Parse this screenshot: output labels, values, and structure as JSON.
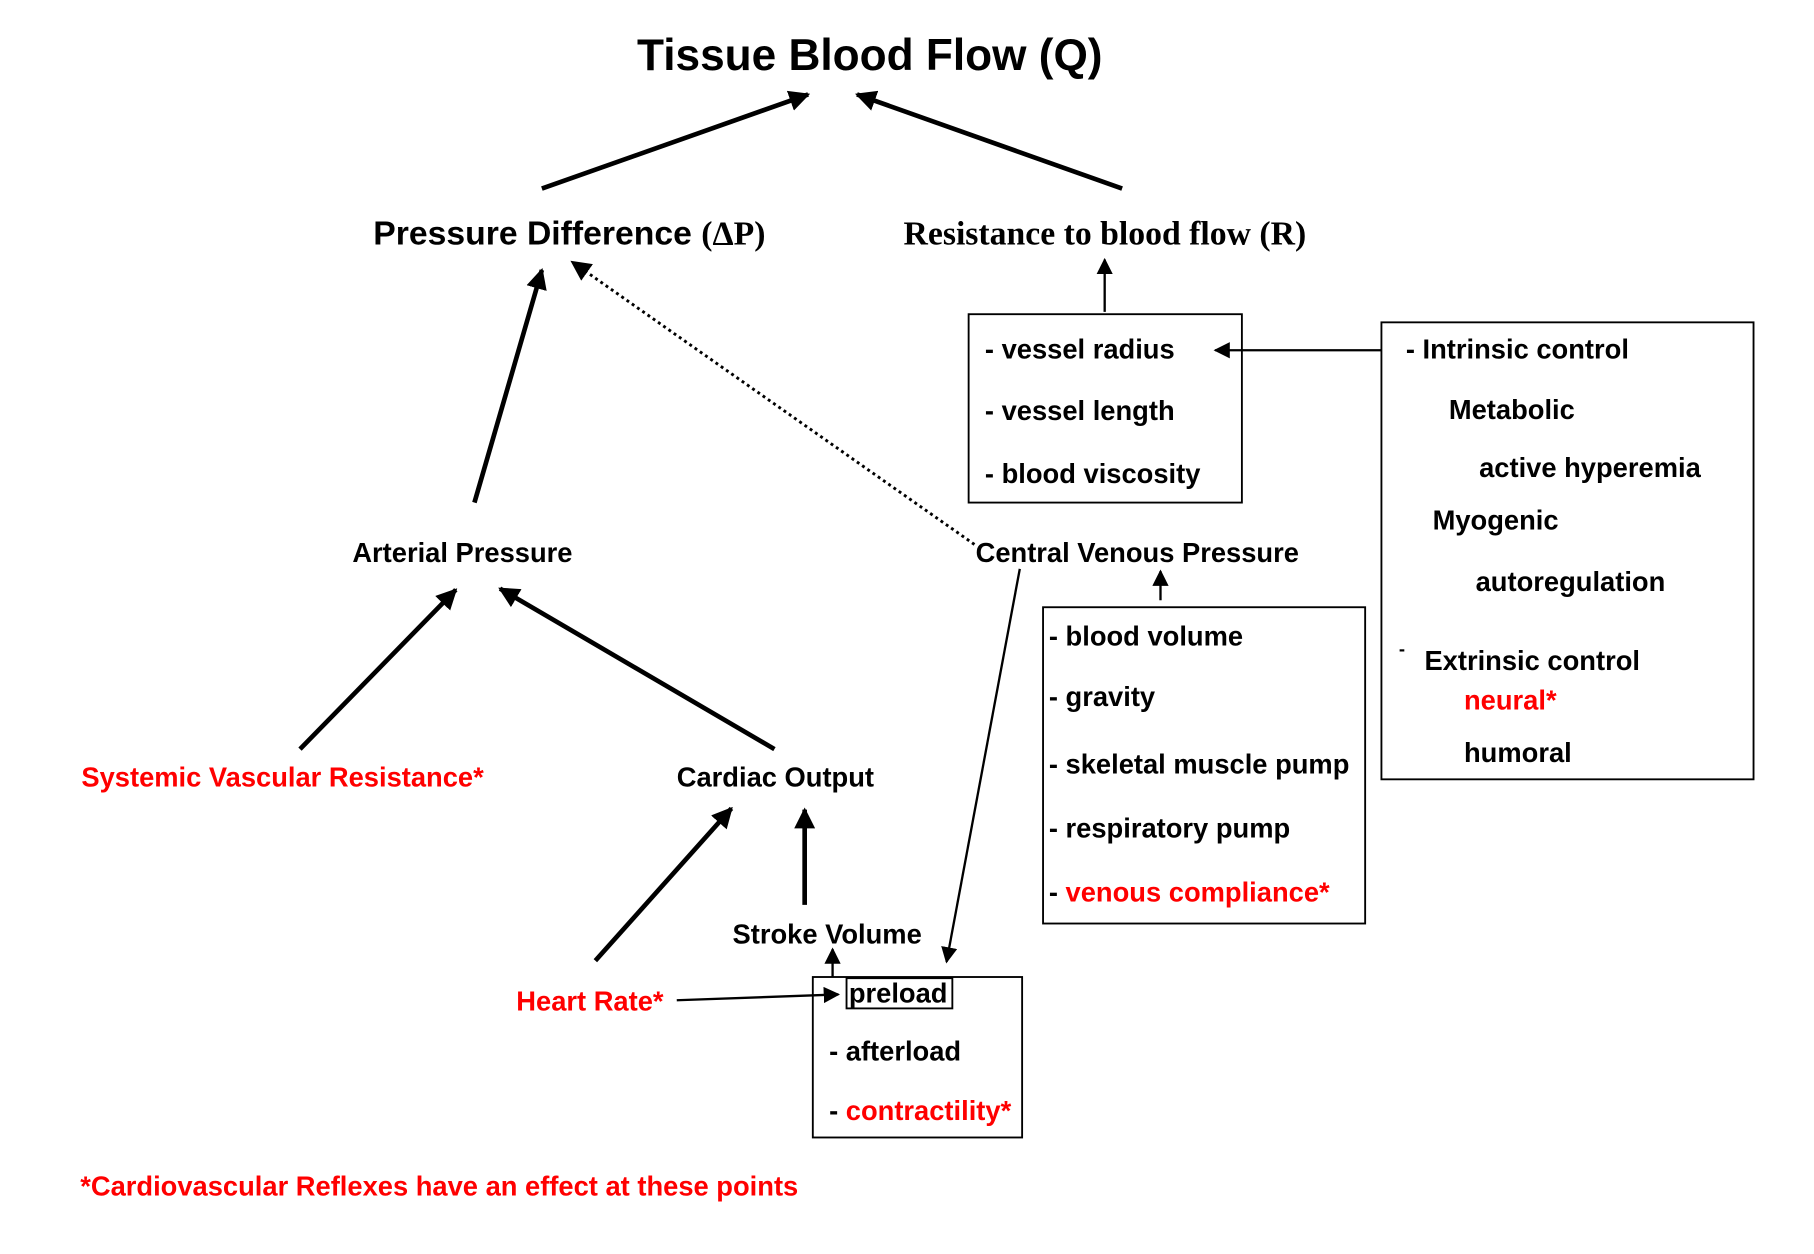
{
  "title": "Tissue Blood Flow (Q)",
  "pressure_difference": {
    "label": "Pressure Difference",
    "symbol": "(ΔP)"
  },
  "resistance": "Resistance to blood flow (R)",
  "resistance_factors": [
    "- vessel radius",
    "- vessel length",
    "- blood viscosity"
  ],
  "control": {
    "intrinsic": "- Intrinsic control",
    "metabolic": "Metabolic",
    "active_hyperemia": "active hyperemia",
    "myogenic": "Myogenic",
    "autoregulation": "autoregulation",
    "extrinsic_dash": "-",
    "extrinsic": "Extrinsic control",
    "neural": "neural*",
    "humoral": "humoral"
  },
  "arterial_pressure": "Arterial Pressure",
  "central_venous_pressure": "Central Venous Pressure",
  "venous_factors": [
    "- blood volume",
    "- gravity",
    "- skeletal muscle pump",
    "- respiratory pump"
  ],
  "venous_compliance": {
    "dash": "- ",
    "label": "venous compliance*"
  },
  "systemic_vascular_resistance": "Systemic Vascular Resistance*",
  "cardiac_output": "Cardiac Output",
  "stroke_volume": "Stroke Volume",
  "heart_rate": "Heart Rate*",
  "stroke_factors": {
    "preload": "preload",
    "afterload": "- afterload",
    "contractility_dash": "- ",
    "contractility": "contractility*"
  },
  "footnote": "*Cardiovascular Reflexes have an effect at these points",
  "colors": {
    "reflex_red": "#ff0000",
    "text": "#000000"
  }
}
